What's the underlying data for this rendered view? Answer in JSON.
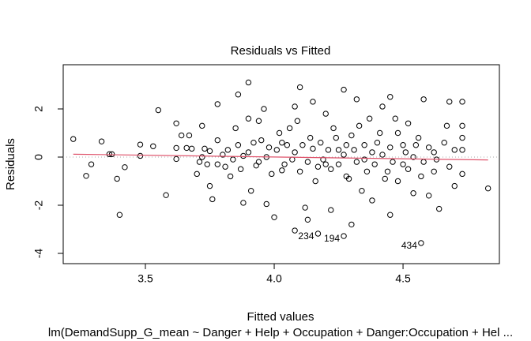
{
  "chart_data": {
    "type": "scatter",
    "title": "Residuals vs Fitted",
    "x_label": "Fitted values",
    "y_label": "Residuals",
    "subtitle": "lm(DemandSupp_G_mean ~ Danger + Help + Occupation + Danger:Occupation + Hel ...",
    "xlim": [
      3.181,
      4.874
    ],
    "ylim": [
      -4.426,
      3.836
    ],
    "xticks": [
      3.5,
      {
        "value": 4,
        "label": "4.0"
      },
      4.5
    ],
    "yticks": [
      -4,
      -2,
      0,
      2
    ],
    "reference_line": 0,
    "series": [
      {
        "color": "#000000",
        "x": [
          3.22,
          3.27,
          3.29,
          3.33,
          3.36,
          3.37,
          3.39,
          3.4,
          3.42,
          3.48,
          3.48,
          3.53,
          3.55,
          3.58,
          3.62,
          3.62,
          3.62,
          3.64,
          3.66,
          3.67,
          3.68,
          3.7,
          3.71,
          3.72,
          3.73,
          3.74,
          3.75,
          3.76,
          3.78,
          3.78,
          3.8,
          3.81,
          3.83,
          3.85,
          3.86,
          3.88,
          3.88,
          3.9,
          3.9,
          3.91,
          3.92,
          3.94,
          3.94,
          3.96,
          3.97,
          3.98,
          4.0,
          4.02,
          4.03,
          4.05,
          4.07,
          4.08,
          4.08,
          4.09,
          4.1,
          4.12,
          4.13,
          4.14,
          4.15,
          4.17,
          4.2,
          4.2,
          4.22,
          4.23,
          4.25,
          4.27,
          4.28,
          4.3,
          4.3,
          4.32,
          4.34,
          4.35,
          4.37,
          4.38,
          4.4,
          4.42,
          4.44,
          4.45,
          4.45,
          4.48,
          4.5,
          4.51,
          4.52,
          4.54,
          4.55,
          4.57,
          4.58,
          4.6,
          4.62,
          4.62,
          4.64,
          4.67,
          4.68,
          4.7,
          4.7,
          4.73,
          4.73,
          4.73,
          4.73,
          4.73,
          4.83,
          3.72,
          3.75,
          3.78,
          3.82,
          3.84,
          3.86,
          3.87,
          3.9,
          3.93,
          3.95,
          3.97,
          3.99,
          4.01,
          4.03,
          4.04,
          4.06,
          4.08,
          4.1,
          4.11,
          4.13,
          4.15,
          4.16,
          4.18,
          4.19,
          4.21,
          4.22,
          4.24,
          4.25,
          4.27,
          4.28,
          4.29,
          4.31,
          4.32,
          4.33,
          4.35,
          4.36,
          4.38,
          4.39,
          4.41,
          4.42,
          4.43,
          4.45,
          4.46,
          4.47,
          4.48,
          4.5,
          4.52,
          4.54,
          4.56,
          4.58,
          4.6,
          4.63,
          4.66,
          4.68
        ],
        "values": [
          0.75,
          -0.78,
          -0.3,
          0.65,
          0.12,
          0.12,
          -0.9,
          -2.4,
          -0.42,
          0.52,
          0.05,
          0.45,
          1.95,
          -1.58,
          0.38,
          -0.08,
          1.4,
          0.9,
          0.38,
          0.9,
          0.35,
          -0.7,
          -0.2,
          1.3,
          0.35,
          -0.3,
          -1.2,
          -1.75,
          2.2,
          0.7,
          0.1,
          -0.4,
          -0.8,
          1.2,
          2.6,
          0.05,
          -1.9,
          3.1,
          1.6,
          -1.4,
          0.6,
          1.5,
          -0.2,
          2.0,
          -1.95,
          0.4,
          -2.5,
          1.0,
          -0.55,
          0.5,
          -0.1,
          2.1,
          -3.05,
          1.5,
          2.9,
          -2.1,
          -2.6,
          0.8,
          2.3,
          -0.4,
          1.8,
          -0.3,
          -2.2,
          1.2,
          0.3,
          2.8,
          -0.8,
          -2.8,
          0.9,
          2.4,
          -1.4,
          -0.1,
          1.6,
          -1.8,
          0.6,
          2.1,
          -0.6,
          -2.4,
          2.5,
          1.0,
          -0.3,
          0.2,
          1.4,
          -1.5,
          0.5,
          -0.8,
          2.4,
          -1.6,
          0.2,
          -0.6,
          -2.15,
          1.3,
          2.3,
          -1.2,
          0.3,
          2.3,
          1.3,
          0.8,
          0.3,
          -0.7,
          -1.3,
          0.0,
          0.25,
          -0.3,
          0.3,
          -0.1,
          0.5,
          -0.5,
          0.2,
          -0.35,
          0.7,
          0.0,
          -0.7,
          0.3,
          0.6,
          -0.3,
          1.2,
          0.2,
          -0.6,
          0.5,
          -0.2,
          0.35,
          -1.0,
          0.6,
          -0.1,
          0.3,
          -0.5,
          0.8,
          -0.3,
          0.1,
          0.5,
          -0.9,
          0.3,
          -0.2,
          1.3,
          0.5,
          -0.6,
          0.2,
          -0.3,
          1.0,
          0.1,
          -0.9,
          0.4,
          -0.2,
          1.6,
          -1.0,
          0.5,
          -0.5,
          0.0,
          0.8,
          -0.2,
          0.4,
          -0.1,
          0.6,
          -0.4
        ]
      },
      {
        "color": "#000000",
        "x": [
          4.17,
          4.27,
          4.57
        ],
        "values": [
          -3.18,
          -3.28,
          -3.57
        ],
        "labels": [
          "234",
          "194",
          "434"
        ]
      }
    ],
    "smooth": {
      "color": "#df536b",
      "x": [
        3.22,
        4.83
      ],
      "values": [
        0.12,
        -0.12
      ]
    }
  }
}
